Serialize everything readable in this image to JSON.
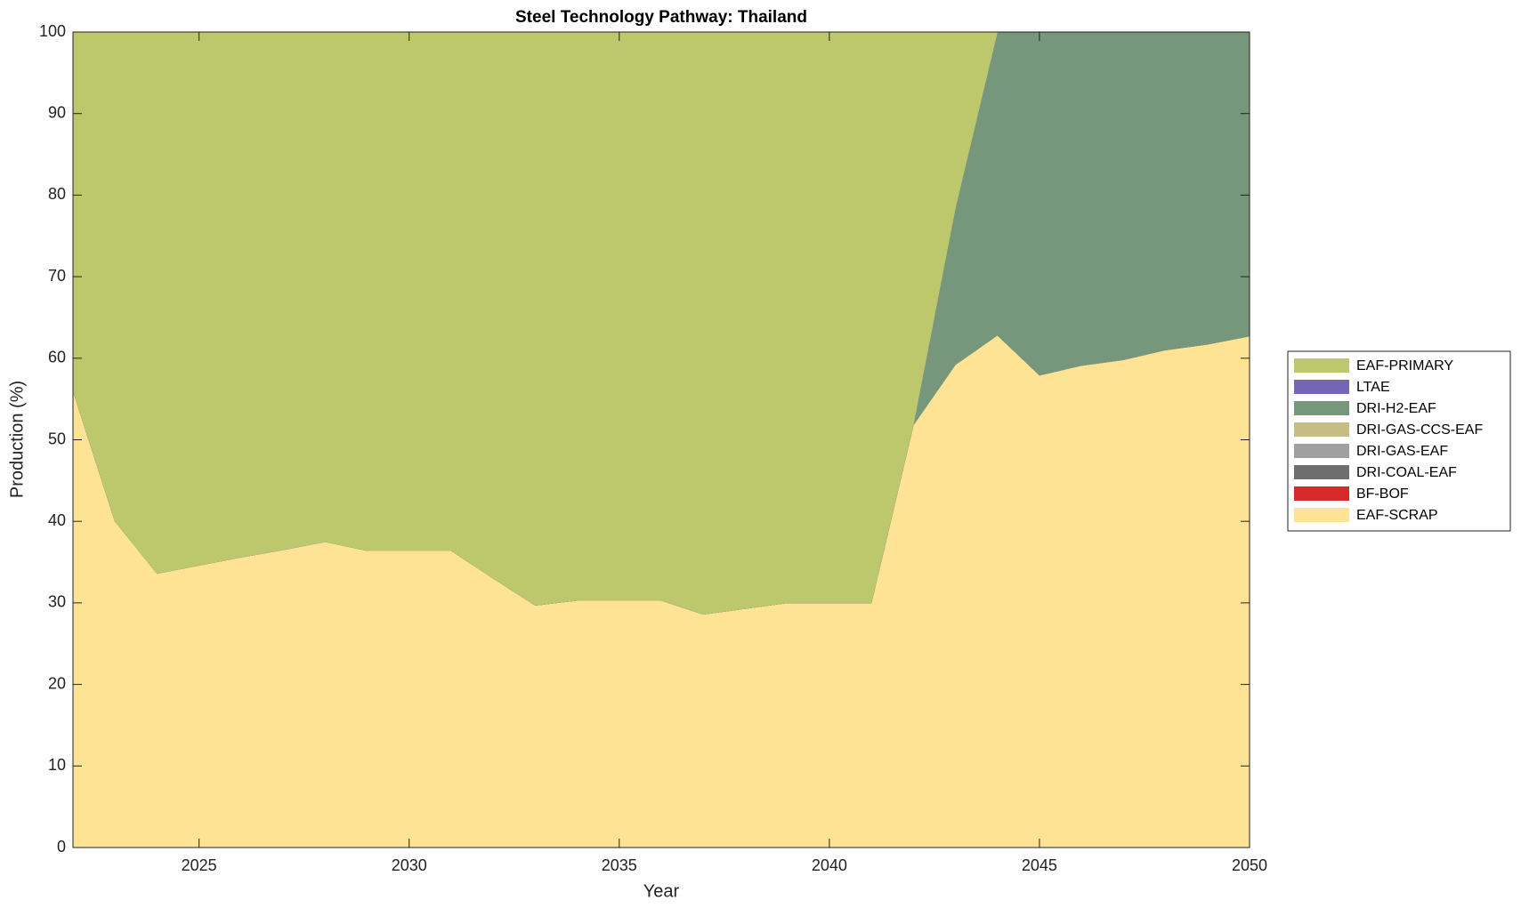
{
  "chart_data": {
    "type": "stacked-area",
    "title": "Steel Technology Pathway: Thailand",
    "x_label": "Year",
    "y_label": "Production (%)",
    "x": [
      2022,
      2023,
      2024,
      2025,
      2026,
      2027,
      2028,
      2029,
      2030,
      2031,
      2032,
      2033,
      2034,
      2035,
      2036,
      2037,
      2038,
      2039,
      2040,
      2041,
      2042,
      2043,
      2044,
      2045,
      2046,
      2047,
      2048,
      2049,
      2050
    ],
    "series": [
      {
        "name": "EAF-SCRAP",
        "color": "#ffe394",
        "values": [
          56,
          40,
          33.6,
          34.6,
          35.6,
          36.5,
          37.5,
          36.4,
          36.4,
          36.4,
          33,
          29.7,
          30.3,
          30.3,
          30.3,
          28.6,
          29.3,
          30,
          30,
          30,
          51.8,
          59.2,
          62.8,
          57.9,
          59.1,
          59.8,
          61,
          61.7,
          62.7
        ]
      },
      {
        "name": "BF-BOF",
        "color": "#d62a2a",
        "values": [
          0,
          0,
          0,
          0,
          0,
          0,
          0,
          0,
          0,
          0,
          0,
          0,
          0,
          0,
          0,
          0,
          0,
          0,
          0,
          0,
          0,
          0,
          0,
          0,
          0,
          0,
          0,
          0,
          0
        ]
      },
      {
        "name": "DRI-COAL-EAF",
        "color": "#6e6e6e",
        "values": [
          0,
          0,
          0,
          0,
          0,
          0,
          0,
          0,
          0,
          0,
          0,
          0,
          0,
          0,
          0,
          0,
          0,
          0,
          0,
          0,
          0,
          0,
          0,
          0,
          0,
          0,
          0,
          0,
          0
        ]
      },
      {
        "name": "DRI-GAS-EAF",
        "color": "#a0a0a0",
        "values": [
          0,
          0,
          0,
          0,
          0,
          0,
          0,
          0,
          0,
          0,
          0,
          0,
          0,
          0,
          0,
          0,
          0,
          0,
          0,
          0,
          0,
          0,
          0,
          0,
          0,
          0,
          0,
          0,
          0
        ]
      },
      {
        "name": "DRI-GAS-CCS-EAF",
        "color": "#c5bd82",
        "values": [
          0,
          0,
          0,
          0,
          0,
          0,
          0,
          0,
          0,
          0,
          0,
          0,
          0,
          0,
          0,
          0,
          0,
          0,
          0,
          0,
          0,
          0,
          0,
          0,
          0,
          0,
          0,
          0,
          0
        ]
      },
      {
        "name": "DRI-H2-EAF",
        "color": "#76977c",
        "values": [
          0,
          0,
          0,
          0,
          0,
          0,
          0,
          0,
          0,
          0,
          0,
          0,
          0,
          0,
          0,
          0,
          0,
          0,
          0,
          0,
          0,
          19.2,
          37.2,
          42.1,
          40.9,
          40.2,
          39,
          38.3,
          37.3
        ]
      },
      {
        "name": "LTAE",
        "color": "#7565b8",
        "values": [
          0,
          0,
          0,
          0,
          0,
          0,
          0,
          0,
          0,
          0,
          0,
          0,
          0,
          0,
          0,
          0,
          0,
          0,
          0,
          0,
          0,
          0,
          0,
          0,
          0,
          0,
          0,
          0,
          0
        ]
      },
      {
        "name": "EAF-PRIMARY",
        "color": "#bdc76b",
        "values": [
          44,
          60,
          66.4,
          65.4,
          64.4,
          63.5,
          62.5,
          63.6,
          63.6,
          63.6,
          67,
          70.3,
          69.7,
          69.7,
          69.7,
          71.4,
          70.7,
          70,
          70,
          70,
          48.2,
          21.6,
          0,
          0,
          0,
          0,
          0,
          0,
          0
        ]
      }
    ],
    "xlim": [
      2022,
      2050
    ],
    "xticks": [
      2025,
      2030,
      2035,
      2040,
      2045,
      2050
    ],
    "ylim": [
      0,
      100
    ],
    "yticks": [
      0,
      10,
      20,
      30,
      40,
      50,
      60,
      70,
      80,
      90,
      100
    ],
    "legend": "right-outside"
  }
}
